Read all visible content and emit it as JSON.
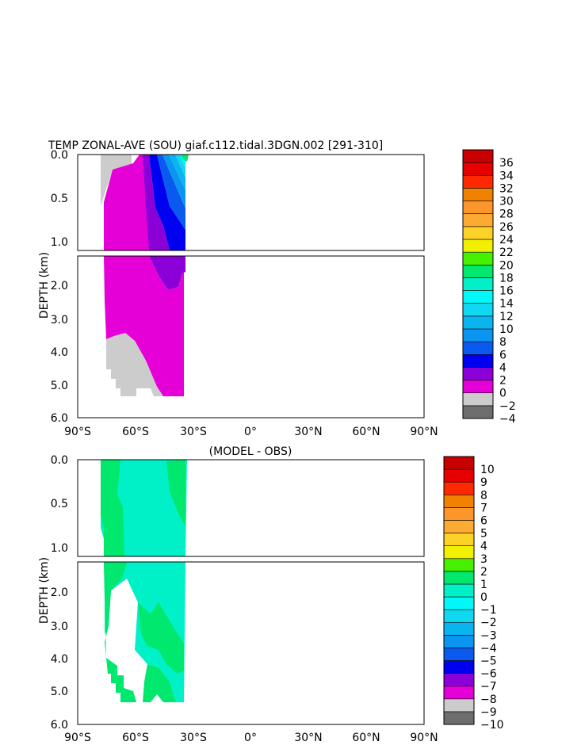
{
  "title": "TEMP ZONAL-AVE (SOU) giaf.c112.tidal.3DGN.002 [291-310]",
  "subtitle": "(MODEL - OBS)",
  "ylabel": "DEPTH (km)",
  "x_ticks": [
    "90°S",
    "60°S",
    "30°S",
    "0°",
    "30°N",
    "60°N",
    "90°N"
  ],
  "y_ticks_upper": [
    "0.0",
    "0.5",
    "1.0"
  ],
  "y_ticks_lower": [
    "2.0",
    "3.0",
    "4.0",
    "5.0",
    "6.0"
  ],
  "chart_data": [
    {
      "type": "heatmap",
      "panel": "top",
      "title": "TEMP ZONAL-AVE (SOU) giaf.c112.tidal.3DGN.002 [291-310]",
      "ylabel": "DEPTH (km)",
      "x_range": [
        "90°S",
        "90°N"
      ],
      "ylim": [
        0,
        6
      ],
      "colorbar_levels": [
        -4,
        -2,
        0,
        2,
        4,
        6,
        8,
        10,
        12,
        14,
        16,
        18,
        20,
        22,
        24,
        26,
        28,
        30,
        32,
        34,
        36
      ],
      "colors": [
        "#6e6e6e",
        "#cccccc",
        "#e600d8",
        "#8c00d8",
        "#0000f0",
        "#0a5af0",
        "#0a96f0",
        "#0ab4f0",
        "#10d8f0",
        "#00f8f8",
        "#00f0c8",
        "#00e86e",
        "#46f000",
        "#f0f000",
        "#fcd226",
        "#fcaa32",
        "#fc962a",
        "#f08200",
        "#ff2800",
        "#e60000",
        "#c80000"
      ],
      "data_extent": "approx. 78°S to 34°S, surface to ~5.4 km"
    },
    {
      "type": "heatmap",
      "panel": "bottom",
      "title": "(MODEL - OBS)",
      "ylabel": "DEPTH (km)",
      "x_range": [
        "90°S",
        "90°N"
      ],
      "ylim": [
        0,
        6
      ],
      "colorbar_levels": [
        -10,
        -9,
        -8,
        -7,
        -6,
        -5,
        -4,
        -3,
        -2,
        -1,
        0,
        1,
        2,
        3,
        4,
        5,
        6,
        7,
        8,
        9,
        10
      ],
      "colors": [
        "#6e6e6e",
        "#cccccc",
        "#e600d8",
        "#8c00d8",
        "#0000f0",
        "#0a5af0",
        "#0a96f0",
        "#0ab4f0",
        "#10d8f0",
        "#00f8f8",
        "#00f0c8",
        "#00e86e",
        "#46f000",
        "#f0f000",
        "#fcd226",
        "#fcaa32",
        "#fc962a",
        "#f08200",
        "#ff2800",
        "#e60000",
        "#c80000"
      ],
      "data_extent": "approx. 78°S to 34°S, surface to ~5.4 km"
    }
  ]
}
